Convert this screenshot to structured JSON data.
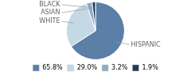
{
  "chart_data": {
    "type": "pie",
    "categories": [
      "HISPANIC",
      "WHITE",
      "ASIAN",
      "BLACK"
    ],
    "values": [
      65.8,
      29.0,
      3.2,
      1.9
    ],
    "value_labels": [
      "65.8%",
      "29.0%",
      "3.2%",
      "1.9%"
    ],
    "colors": [
      "#5b7fa6",
      "#c5d8e5",
      "#8aafc5",
      "#1e3a5c"
    ],
    "legend": "bottom"
  }
}
